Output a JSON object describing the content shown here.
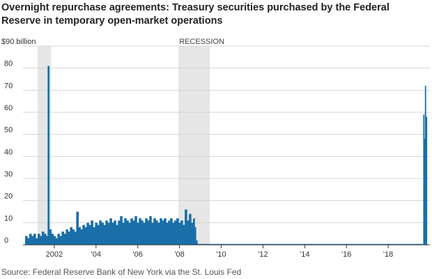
{
  "title": "Overnight repurchase agreements: Treasury securities purchased by the Federal Reserve in temporary open-market operations",
  "source": "Source: Federal Reserve Bank of New York via the St. Louis Fed",
  "chart_data": {
    "type": "bar",
    "title": "Overnight repurchase agreements: Treasury securities purchased by the Federal Reserve in temporary open-market operations",
    "ylabel": "",
    "xlabel": "",
    "ylim": [
      0,
      90
    ],
    "xlim": [
      2000.5,
      2020.0
    ],
    "grid": true,
    "y_ticks": [
      {
        "value": 0,
        "label": "0"
      },
      {
        "value": 10,
        "label": "10"
      },
      {
        "value": 20,
        "label": "20"
      },
      {
        "value": 30,
        "label": "30"
      },
      {
        "value": 40,
        "label": "40"
      },
      {
        "value": 50,
        "label": "50"
      },
      {
        "value": 60,
        "label": "60"
      },
      {
        "value": 70,
        "label": "70"
      },
      {
        "value": 80,
        "label": "80"
      },
      {
        "value": 90,
        "label": "$90 billion"
      }
    ],
    "x_ticks": [
      {
        "value": 2002,
        "label": "2002"
      },
      {
        "value": 2004,
        "label": "'04"
      },
      {
        "value": 2006,
        "label": "'06"
      },
      {
        "value": 2008,
        "label": "'08"
      },
      {
        "value": 2010,
        "label": "'10"
      },
      {
        "value": 2012,
        "label": "'12"
      },
      {
        "value": 2014,
        "label": "'14"
      },
      {
        "value": 2016,
        "label": "'16"
      },
      {
        "value": 2018,
        "label": "'18"
      }
    ],
    "recessions": [
      {
        "start": 2001.2,
        "end": 2001.85,
        "label": ""
      },
      {
        "start": 2007.95,
        "end": 2009.45,
        "label": "RECESSION"
      }
    ],
    "series": [
      {
        "color": "#1a6fa8",
        "points": [
          [
            2000.6,
            4
          ],
          [
            2000.7,
            3
          ],
          [
            2000.8,
            5
          ],
          [
            2000.9,
            4
          ],
          [
            2001.0,
            5
          ],
          [
            2001.1,
            3
          ],
          [
            2001.2,
            5
          ],
          [
            2001.3,
            4
          ],
          [
            2001.4,
            6
          ],
          [
            2001.5,
            5
          ],
          [
            2001.6,
            4
          ],
          [
            2001.68,
            81
          ],
          [
            2001.75,
            7
          ],
          [
            2001.85,
            5
          ],
          [
            2001.95,
            4
          ],
          [
            2002.05,
            3
          ],
          [
            2002.15,
            5
          ],
          [
            2002.25,
            4
          ],
          [
            2002.35,
            6
          ],
          [
            2002.45,
            5
          ],
          [
            2002.55,
            7
          ],
          [
            2002.65,
            6
          ],
          [
            2002.75,
            8
          ],
          [
            2002.85,
            7
          ],
          [
            2002.95,
            6
          ],
          [
            2003.05,
            15
          ],
          [
            2003.15,
            8
          ],
          [
            2003.25,
            7
          ],
          [
            2003.35,
            9
          ],
          [
            2003.45,
            8
          ],
          [
            2003.55,
            10
          ],
          [
            2003.65,
            9
          ],
          [
            2003.75,
            11
          ],
          [
            2003.85,
            8
          ],
          [
            2003.95,
            10
          ],
          [
            2004.05,
            9
          ],
          [
            2004.15,
            11
          ],
          [
            2004.25,
            10
          ],
          [
            2004.35,
            9
          ],
          [
            2004.45,
            11
          ],
          [
            2004.55,
            10
          ],
          [
            2004.65,
            12
          ],
          [
            2004.75,
            10
          ],
          [
            2004.85,
            11
          ],
          [
            2004.95,
            9
          ],
          [
            2005.05,
            11
          ],
          [
            2005.15,
            13
          ],
          [
            2005.25,
            10
          ],
          [
            2005.35,
            12
          ],
          [
            2005.45,
            11
          ],
          [
            2005.55,
            10
          ],
          [
            2005.65,
            12
          ],
          [
            2005.75,
            11
          ],
          [
            2005.85,
            13
          ],
          [
            2005.95,
            10
          ],
          [
            2006.05,
            12
          ],
          [
            2006.15,
            11
          ],
          [
            2006.25,
            10
          ],
          [
            2006.35,
            12
          ],
          [
            2006.45,
            11
          ],
          [
            2006.55,
            13
          ],
          [
            2006.65,
            10
          ],
          [
            2006.75,
            12
          ],
          [
            2006.85,
            11
          ],
          [
            2006.95,
            10
          ],
          [
            2007.05,
            12
          ],
          [
            2007.15,
            11
          ],
          [
            2007.25,
            12
          ],
          [
            2007.35,
            10
          ],
          [
            2007.45,
            11
          ],
          [
            2007.55,
            12
          ],
          [
            2007.65,
            10
          ],
          [
            2007.75,
            11
          ],
          [
            2007.85,
            12
          ],
          [
            2007.95,
            10
          ],
          [
            2008.05,
            11
          ],
          [
            2008.15,
            9
          ],
          [
            2008.25,
            16
          ],
          [
            2008.35,
            11
          ],
          [
            2008.45,
            14
          ],
          [
            2008.55,
            10
          ],
          [
            2008.65,
            12
          ],
          [
            2008.72,
            8
          ],
          [
            2008.78,
            2
          ],
          [
            2008.85,
            0
          ],
          [
            2019.68,
            59
          ],
          [
            2019.72,
            48
          ],
          [
            2019.76,
            72
          ],
          [
            2019.8,
            58
          ],
          [
            2019.85,
            0
          ]
        ]
      }
    ]
  }
}
